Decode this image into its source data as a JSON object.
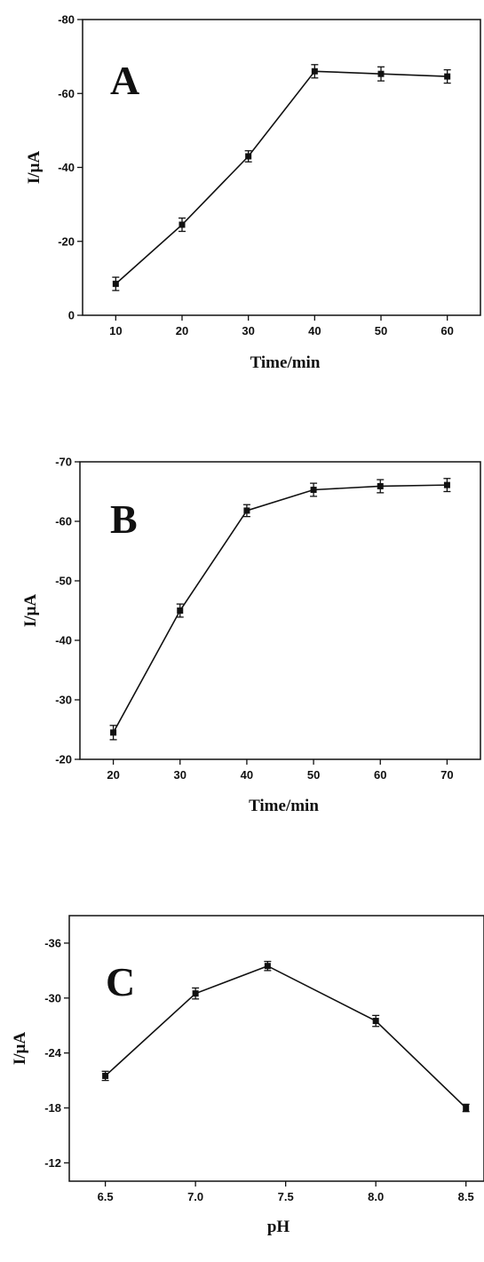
{
  "chart_data": [
    {
      "type": "line",
      "panel_label": "A",
      "xlabel": "Time/min",
      "ylabel": "I/μA",
      "xlim": [
        5,
        65
      ],
      "ylim": [
        -80,
        0
      ],
      "y_inverted": true,
      "xticks": [
        "10",
        "20",
        "30",
        "40",
        "50",
        "60"
      ],
      "xtick_values": [
        10,
        20,
        30,
        40,
        50,
        60
      ],
      "yticks": [
        "-80",
        "-60",
        "-40",
        "-20",
        "0"
      ],
      "ytick_values": [
        -80,
        -60,
        -40,
        -20,
        0
      ],
      "grid": false,
      "marker": "square",
      "series": [
        {
          "x": [
            10,
            20,
            30,
            40,
            50,
            60
          ],
          "y": [
            -8.5,
            -24.5,
            -43,
            -66,
            -65.3,
            -64.6
          ],
          "error": [
            1.8,
            1.8,
            1.5,
            1.8,
            1.9,
            1.8
          ]
        }
      ]
    },
    {
      "type": "line",
      "panel_label": "B",
      "xlabel": "Time/min",
      "ylabel": "I/μA",
      "xlim": [
        15,
        75
      ],
      "ylim": [
        -70,
        -20
      ],
      "y_inverted": true,
      "xticks": [
        "20",
        "30",
        "40",
        "50",
        "60",
        "70"
      ],
      "xtick_values": [
        20,
        30,
        40,
        50,
        60,
        70
      ],
      "yticks": [
        "-70",
        "-60",
        "-50",
        "-40",
        "-30",
        "-20"
      ],
      "ytick_values": [
        -70,
        -60,
        -50,
        -40,
        -30,
        -20
      ],
      "grid": false,
      "marker": "square",
      "series": [
        {
          "x": [
            20,
            30,
            40,
            50,
            60,
            70
          ],
          "y": [
            -24.5,
            -45,
            -61.8,
            -65.3,
            -65.9,
            -66.1
          ],
          "error": [
            1.2,
            1.1,
            1.0,
            1.1,
            1.1,
            1.1
          ]
        }
      ]
    },
    {
      "type": "line",
      "panel_label": "C",
      "xlabel": "pH",
      "ylabel": "I/μA",
      "xlim": [
        6.3,
        8.6
      ],
      "ylim": [
        -39,
        -10
      ],
      "y_inverted": true,
      "xticks": [
        "6.5",
        "7.0",
        "7.5",
        "8.0",
        "8.5"
      ],
      "xtick_values": [
        6.5,
        7.0,
        7.5,
        8.0,
        8.5
      ],
      "yticks": [
        "-36",
        "-30",
        "-24",
        "-18",
        "-12"
      ],
      "ytick_values": [
        -36,
        -30,
        -24,
        -18,
        -12
      ],
      "grid": false,
      "marker": "square",
      "series": [
        {
          "x": [
            6.5,
            7.0,
            7.4,
            8.0,
            8.5
          ],
          "y": [
            -21.5,
            -30.5,
            -33.5,
            -27.5,
            -18.0
          ],
          "error": [
            0.5,
            0.6,
            0.5,
            0.6,
            0.4
          ]
        }
      ]
    }
  ]
}
